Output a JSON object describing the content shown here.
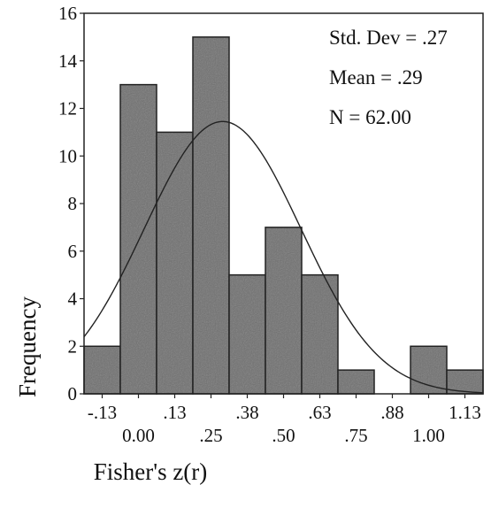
{
  "chart_data": {
    "type": "bar",
    "subtype": "histogram",
    "xlabel": "Fisher's z(r)",
    "ylabel": "Frequency",
    "ylim": [
      0,
      16
    ],
    "y_ticks": [
      0,
      2,
      4,
      6,
      8,
      10,
      12,
      14,
      16
    ],
    "bin_width": 0.125,
    "x_tick_labels_upper": [
      {
        "value": -0.125,
        "label": "-.13"
      },
      {
        "value": 0.125,
        "label": ".13"
      },
      {
        "value": 0.375,
        "label": ".38"
      },
      {
        "value": 0.625,
        "label": ".63"
      },
      {
        "value": 0.875,
        "label": ".88"
      },
      {
        "value": 1.125,
        "label": "1.13"
      }
    ],
    "x_tick_labels_lower": [
      {
        "value": 0.0,
        "label": "0.00"
      },
      {
        "value": 0.25,
        "label": ".25"
      },
      {
        "value": 0.5,
        "label": ".50"
      },
      {
        "value": 0.75,
        "label": ".75"
      },
      {
        "value": 1.0,
        "label": "1.00"
      }
    ],
    "bins": [
      {
        "center": -0.125,
        "count": 2
      },
      {
        "center": 0.0,
        "count": 13
      },
      {
        "center": 0.125,
        "count": 11
      },
      {
        "center": 0.25,
        "count": 15
      },
      {
        "center": 0.375,
        "count": 5
      },
      {
        "center": 0.5,
        "count": 7
      },
      {
        "center": 0.625,
        "count": 5
      },
      {
        "center": 0.75,
        "count": 1
      },
      {
        "center": 0.875,
        "count": 0
      },
      {
        "center": 1.0,
        "count": 2
      },
      {
        "center": 1.125,
        "count": 1
      }
    ],
    "normal_curve": {
      "mean": 0.29,
      "sd": 0.27,
      "n": 62
    },
    "stats": {
      "std_dev_text": "Std. Dev = .27",
      "mean_text": "Mean = .29",
      "n_text": "N = 62.00"
    },
    "bar_color": "#6e6e6e"
  }
}
